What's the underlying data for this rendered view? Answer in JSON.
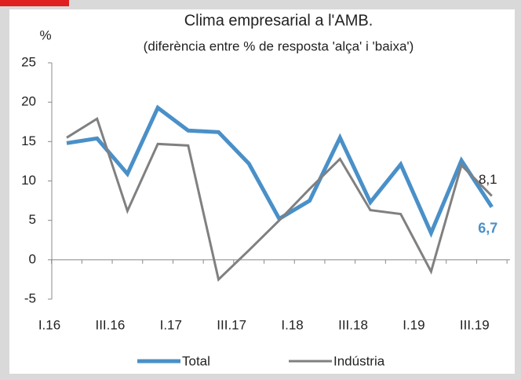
{
  "chart_data": {
    "type": "line",
    "title": "Clima empresarial a l'AMB.",
    "subtitle": "(diferència entre % de resposta 'alça' i 'baixa')",
    "y_unit": "%",
    "categories": [
      "I.16",
      null,
      "III.16",
      null,
      "I.17",
      null,
      "III.17",
      null,
      "I.18",
      null,
      "III.18",
      null,
      "I.19",
      null,
      "III.19"
    ],
    "series": [
      {
        "name": "Total",
        "color": "#4a90c8",
        "values": [
          14.8,
          15.4,
          10.9,
          19.3,
          16.4,
          16.2,
          12.2,
          5.2,
          7.5,
          15.5,
          7.3,
          12.1,
          3.4,
          12.6,
          6.7
        ],
        "value_labels": [
          null,
          null,
          null,
          null,
          null,
          null,
          null,
          null,
          null,
          null,
          null,
          null,
          null,
          null,
          "6,7"
        ]
      },
      {
        "name": "Indústria",
        "color": "#808080",
        "values": [
          15.5,
          17.9,
          6.2,
          14.7,
          14.5,
          -2.5,
          1.2,
          5.0,
          9.0,
          12.8,
          6.3,
          5.8,
          -1.5,
          12.0,
          8.1
        ],
        "value_labels": [
          null,
          null,
          null,
          null,
          null,
          null,
          null,
          null,
          null,
          null,
          null,
          null,
          null,
          null,
          "8,1"
        ]
      }
    ],
    "ylim": [
      -5,
      25
    ],
    "yticks": [
      -5,
      0,
      5,
      10,
      15,
      20,
      25
    ],
    "grid": false
  }
}
